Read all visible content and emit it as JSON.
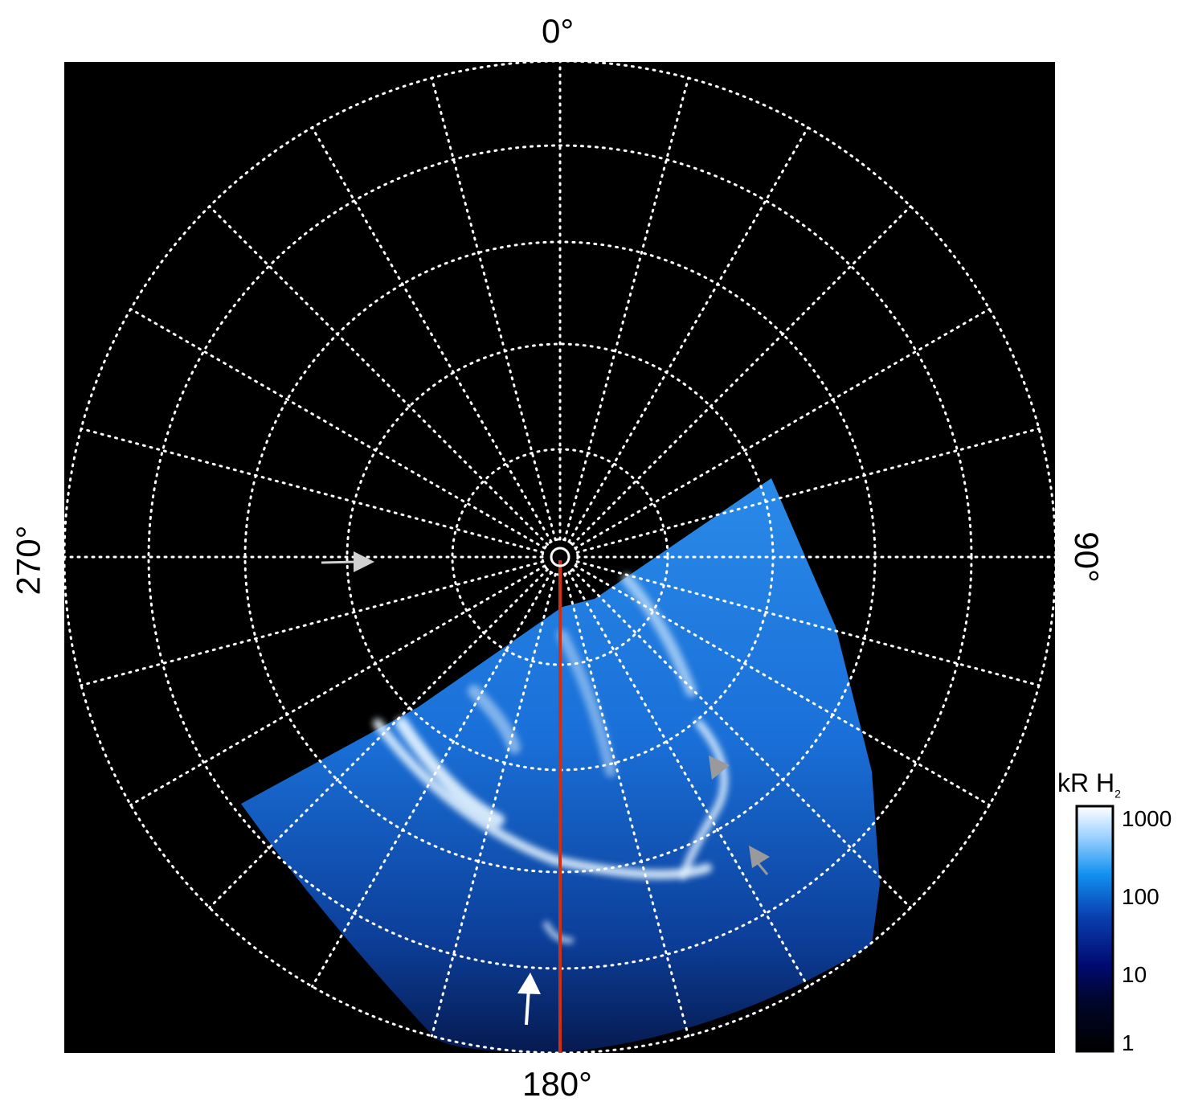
{
  "map": {
    "projection": "polar",
    "longitude_labels": {
      "top": "0°",
      "right": "90°",
      "bottom": "180°",
      "left": "270°"
    },
    "background_color": "#000000",
    "grid_color": "#ffffff",
    "meridian_line_color": "#d03010"
  },
  "colorbar": {
    "title": "kR H",
    "title_subscript": "2",
    "scale": "log",
    "range": [
      1,
      1000
    ],
    "tick_labels": [
      "1000",
      "100",
      "10",
      "1"
    ],
    "colors": [
      "#000000",
      "#000a70",
      "#0a3fb0",
      "#1090f0",
      "#a0d4ff",
      "#ffffff"
    ]
  },
  "annotations": {
    "arrows": [
      {
        "color": "#d0d0d0",
        "kind": "arrow",
        "near": "270° meridian"
      },
      {
        "color": "#ffffff",
        "kind": "arrow",
        "near": "180° meridian"
      },
      {
        "color": "#9a9a9a",
        "kind": "arrowhead",
        "near": "emission arc"
      },
      {
        "color": "#9a9a9a",
        "kind": "arrowhead",
        "near": "emission arc"
      }
    ]
  }
}
